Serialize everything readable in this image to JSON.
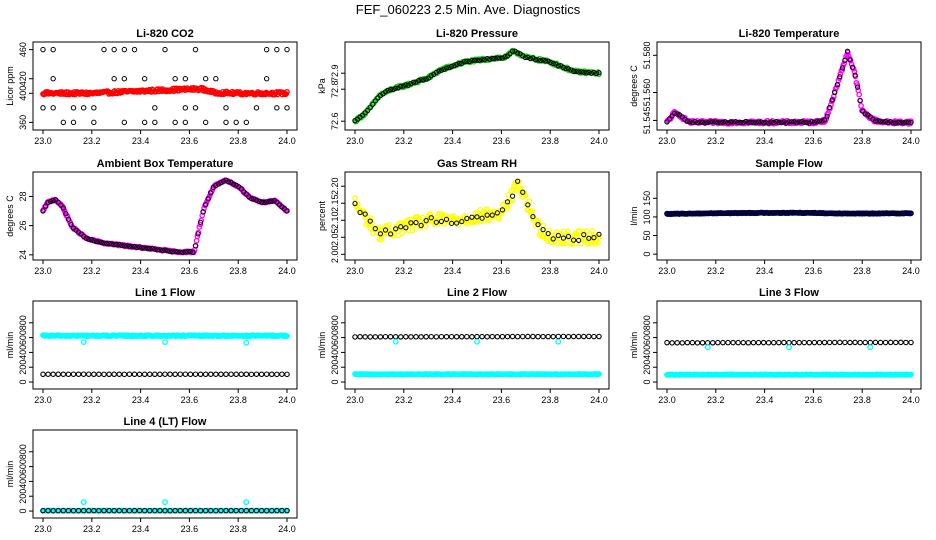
{
  "figure_title": "FEF_060223  2.5 Min. Ave. Diagnostics",
  "colors": {
    "red": "#ff0000",
    "green": "#22cc22",
    "magenta": "#ff00ff",
    "yellow": "#ffff00",
    "blue": "#0000cc",
    "cyan": "#00ffff",
    "black": "#000000"
  },
  "chart_data": [
    {
      "id": "co2",
      "type": "scatter",
      "title": "Li-820 CO2",
      "ylabel": "Licor ppm",
      "xlim": [
        23.0,
        24.0
      ],
      "ylim": [
        355,
        465
      ],
      "xticks": [
        "23.0",
        "23.2",
        "23.4",
        "23.6",
        "23.8",
        "24.0"
      ],
      "yticks": [
        "360",
        "400",
        "420",
        "460"
      ],
      "series": [
        {
          "name": "min-max",
          "color": "black",
          "hollow": true,
          "kind": "minmax",
          "base": 400,
          "values": [
            360,
            380,
            420,
            460
          ]
        },
        {
          "name": "mean",
          "color": "red",
          "dense": true,
          "x": [
            23.0,
            23.2,
            23.4,
            23.55,
            23.65,
            23.7,
            23.8,
            24.0
          ],
          "y": [
            400,
            400,
            403,
            405,
            406,
            401,
            400,
            400
          ],
          "jitter": 2
        }
      ]
    },
    {
      "id": "pressure",
      "type": "scatter",
      "title": "Li-820 Pressure",
      "ylabel": "kPa",
      "xlim": [
        23.0,
        24.0
      ],
      "ylim": [
        72.57,
        73.07
      ],
      "xticks": [
        "23.0",
        "23.2",
        "23.4",
        "23.6",
        "23.8",
        "24.0"
      ],
      "yticks": [
        "72.6",
        "72.8",
        "72.9"
      ],
      "series": [
        {
          "name": "series",
          "color": "green",
          "dense": true,
          "black_overlay": true,
          "x": [
            23.0,
            23.05,
            23.1,
            23.15,
            23.2,
            23.3,
            23.35,
            23.45,
            23.55,
            23.62,
            23.65,
            23.7,
            23.8,
            23.9,
            24.0
          ],
          "y": [
            72.6,
            72.66,
            72.76,
            72.8,
            72.82,
            72.87,
            72.92,
            72.97,
            72.99,
            73.0,
            73.04,
            73.0,
            72.97,
            72.91,
            72.9
          ],
          "jitter": 0.008
        }
      ]
    },
    {
      "id": "licortemp",
      "type": "scatter",
      "title": "Li-820 Temperature",
      "ylabel": "degrees C",
      "xlim": [
        23.0,
        24.0
      ],
      "ylim": [
        51.542,
        51.585
      ],
      "xticks": [
        "23.0",
        "23.2",
        "23.4",
        "23.6",
        "23.8",
        "24.0"
      ],
      "yticks": [
        "51.545",
        "51.560",
        "51.580"
      ],
      "series": [
        {
          "name": "series",
          "color": "magenta",
          "dense": true,
          "black_overlay": true,
          "x": [
            23.0,
            23.03,
            23.05,
            23.08,
            23.1,
            23.2,
            23.6,
            23.65,
            23.7,
            23.74,
            23.77,
            23.8,
            23.85,
            23.9,
            24.0
          ],
          "y": [
            51.544,
            51.549,
            51.548,
            51.545,
            51.544,
            51.544,
            51.544,
            51.545,
            51.565,
            51.582,
            51.57,
            51.55,
            51.545,
            51.544,
            51.544
          ],
          "jitter": 0.0008
        }
      ]
    },
    {
      "id": "ambtemp",
      "type": "scatter",
      "title": "Ambient Box Temperature",
      "ylabel": "degrees C",
      "xlim": [
        23.0,
        24.0
      ],
      "ylim": [
        23.92,
        29.4
      ],
      "xticks": [
        "23.0",
        "23.2",
        "23.4",
        "23.6",
        "23.8",
        "24.0"
      ],
      "yticks": [
        "24",
        "26",
        "28"
      ],
      "series": [
        {
          "name": "series",
          "color": "magenta",
          "dense": true,
          "black_overlay": true,
          "x": [
            23.0,
            23.02,
            23.05,
            23.08,
            23.12,
            23.18,
            23.25,
            23.35,
            23.45,
            23.55,
            23.62,
            23.64,
            23.66,
            23.7,
            23.75,
            23.8,
            23.85,
            23.9,
            23.95,
            24.0
          ],
          "y": [
            27.0,
            27.6,
            27.8,
            27.3,
            25.9,
            25.1,
            24.8,
            24.6,
            24.4,
            24.2,
            24.2,
            25.8,
            27.2,
            28.7,
            29.1,
            28.7,
            27.9,
            27.6,
            27.7,
            27.0
          ],
          "jitter": 0.05
        }
      ]
    },
    {
      "id": "rh",
      "type": "scatter",
      "title": "Gas Stream RH",
      "ylabel": "percent",
      "xlim": [
        23.0,
        24.0
      ],
      "ylim": [
        1.995,
        2.23
      ],
      "xticks": [
        "23.0",
        "23.2",
        "23.4",
        "23.6",
        "23.8",
        "24.0"
      ],
      "yticks": [
        "2.00",
        "2.05",
        "2.10",
        "2.15",
        "2.20"
      ],
      "series": [
        {
          "name": "series",
          "color": "yellow",
          "dense": true,
          "black_overlay": true,
          "sparse_black": true,
          "x": [
            23.0,
            23.05,
            23.1,
            23.2,
            23.3,
            23.4,
            23.5,
            23.6,
            23.64,
            23.67,
            23.7,
            23.75,
            23.8,
            23.9,
            24.0
          ],
          "y": [
            2.15,
            2.1,
            2.06,
            2.08,
            2.1,
            2.1,
            2.11,
            2.12,
            2.17,
            2.21,
            2.16,
            2.08,
            2.05,
            2.05,
            2.05
          ],
          "jitter": 0.02
        }
      ]
    },
    {
      "id": "sample",
      "type": "scatter",
      "title": "Sample Flow",
      "ylabel": "l/min",
      "xlim": [
        23.0,
        24.0
      ],
      "ylim": [
        -5,
        210
      ],
      "xticks": [
        "23.0",
        "23.2",
        "23.4",
        "23.6",
        "23.8",
        "24.0"
      ],
      "yticks": [
        "0",
        "50",
        "100",
        "150"
      ],
      "series": [
        {
          "name": "series",
          "color": "blue",
          "dense": true,
          "black_overlay": true,
          "x": [
            23.0,
            23.2,
            23.4,
            23.6,
            23.65,
            23.8,
            24.0
          ],
          "y": [
            108,
            110,
            111,
            111,
            110,
            109,
            110
          ],
          "jitter": 1
        }
      ]
    },
    {
      "id": "line1",
      "type": "scatter",
      "title": "Line 1 Flow",
      "ylabel": "ml/min",
      "xlim": [
        23.0,
        24.0
      ],
      "ylim": [
        -40,
        1040
      ],
      "xticks": [
        "23.0",
        "23.2",
        "23.4",
        "23.6",
        "23.8",
        "24.0"
      ],
      "yticks": [
        "0",
        "200",
        "400",
        "600",
        "800"
      ],
      "series": [
        {
          "name": "cyan",
          "color": "cyan",
          "dense": true,
          "x": [
            23.0,
            24.0
          ],
          "y": [
            625,
            625
          ],
          "jitter": 8,
          "outliers": {
            "x": [
              23.167,
              23.5,
              23.833
            ],
            "y": [
              540,
              540,
              530
            ]
          }
        },
        {
          "name": "black",
          "color": "black",
          "hollow": true,
          "x": [
            23.0,
            24.0
          ],
          "y": [
            105,
            105
          ],
          "jitter": 2
        }
      ]
    },
    {
      "id": "line2",
      "type": "scatter",
      "title": "Line 2 Flow",
      "ylabel": "ml/min",
      "xlim": [
        23.0,
        24.0
      ],
      "ylim": [
        -40,
        1040
      ],
      "xticks": [
        "23.0",
        "23.2",
        "23.4",
        "23.6",
        "23.8",
        "24.0"
      ],
      "yticks": [
        "0",
        "200",
        "400",
        "600",
        "800"
      ],
      "series": [
        {
          "name": "cyan",
          "color": "cyan",
          "dense": true,
          "x": [
            23.0,
            24.0
          ],
          "y": [
            105,
            105
          ],
          "jitter": 4
        },
        {
          "name": "black",
          "color": "black",
          "hollow": true,
          "x": [
            23.0,
            24.0
          ],
          "y": [
            610,
            615
          ],
          "jitter": 3,
          "outliers": {
            "x": [
              23.167,
              23.5,
              23.833
            ],
            "y": [
              545,
              545,
              545
            ],
            "color": "cyan"
          }
        }
      ]
    },
    {
      "id": "line3",
      "type": "scatter",
      "title": "Line 3 Flow",
      "ylabel": "ml/min",
      "xlim": [
        23.0,
        24.0
      ],
      "ylim": [
        -40,
        1040
      ],
      "xticks": [
        "23.0",
        "23.2",
        "23.4",
        "23.6",
        "23.8",
        "24.0"
      ],
      "yticks": [
        "0",
        "200",
        "400",
        "600",
        "800"
      ],
      "series": [
        {
          "name": "cyan",
          "color": "cyan",
          "dense": true,
          "x": [
            23.0,
            24.0
          ],
          "y": [
            100,
            100
          ],
          "jitter": 4
        },
        {
          "name": "black",
          "color": "black",
          "hollow": true,
          "x": [
            23.0,
            24.0
          ],
          "y": [
            530,
            535
          ],
          "jitter": 3,
          "outliers": {
            "x": [
              23.167,
              23.5,
              23.833
            ],
            "y": [
              470,
              470,
              470
            ],
            "color": "cyan"
          }
        }
      ]
    },
    {
      "id": "line4",
      "type": "scatter",
      "title": "Line 4 (LT) Flow",
      "ylabel": "ml/min",
      "xlim": [
        23.0,
        24.0
      ],
      "ylim": [
        -40,
        1040
      ],
      "xticks": [
        "23.0",
        "23.2",
        "23.4",
        "23.6",
        "23.8",
        "24.0"
      ],
      "yticks": [
        "0",
        "200",
        "400",
        "600",
        "800"
      ],
      "series": [
        {
          "name": "cyan",
          "color": "cyan",
          "dense": true,
          "x": [
            23.0,
            24.0
          ],
          "y": [
            5,
            5
          ],
          "jitter": 2,
          "outliers": {
            "x": [
              23.167,
              23.5,
              23.833
            ],
            "y": [
              120,
              120,
              120
            ]
          }
        },
        {
          "name": "black",
          "color": "black",
          "hollow": true,
          "x": [
            23.0,
            24.0
          ],
          "y": [
            5,
            5
          ],
          "jitter": 1
        }
      ]
    }
  ]
}
